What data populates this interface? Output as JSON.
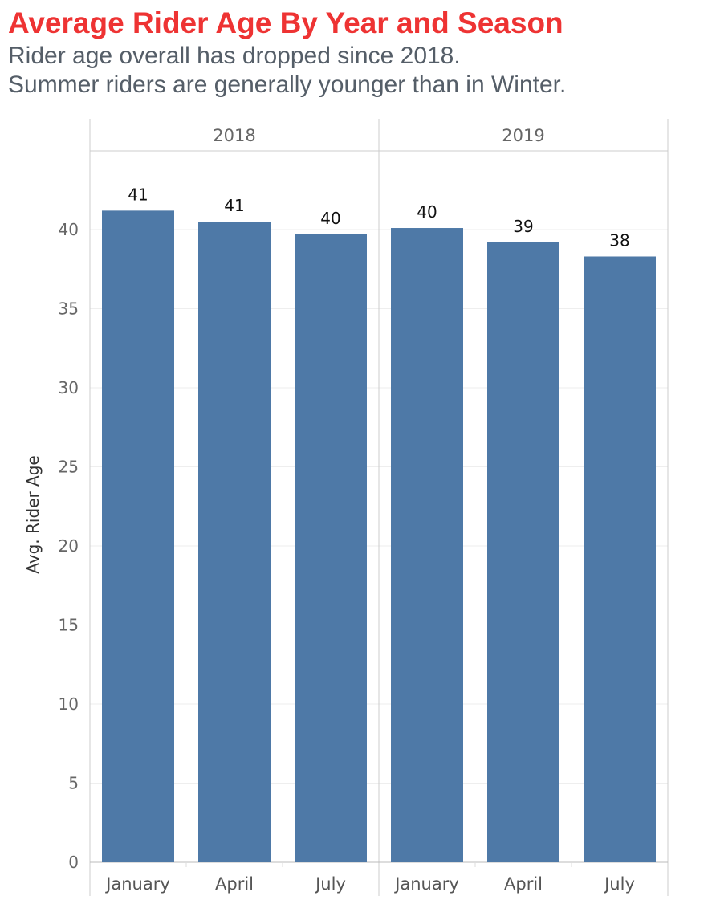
{
  "header": {
    "title": "Average Rider Age By Year and Season",
    "subtitle_line1": "Rider age overall has dropped since 2018.",
    "subtitle_line2": "Summer riders are generally younger than in Winter."
  },
  "colors": {
    "title": "#ee3333",
    "subtitle": "#555e68",
    "bar": "#4e79a7",
    "grid": "#eeeeee",
    "divider": "#cccccc"
  },
  "chart_data": {
    "type": "bar",
    "title": "Average Rider Age By Year and Season",
    "ylabel": "Avg. Rider Age",
    "xlabel": "",
    "ylim": [
      0,
      45
    ],
    "yticks": [
      0,
      5,
      10,
      15,
      20,
      25,
      30,
      35,
      40
    ],
    "grid": true,
    "legend": "none",
    "panels": [
      {
        "name": "2018",
        "categories": [
          "January",
          "April",
          "July"
        ],
        "values": [
          41.2,
          40.5,
          39.7
        ],
        "labels": [
          "41",
          "41",
          "40"
        ]
      },
      {
        "name": "2019",
        "categories": [
          "January",
          "April",
          "July"
        ],
        "values": [
          40.1,
          39.2,
          38.3
        ],
        "labels": [
          "40",
          "39",
          "38"
        ]
      }
    ]
  }
}
